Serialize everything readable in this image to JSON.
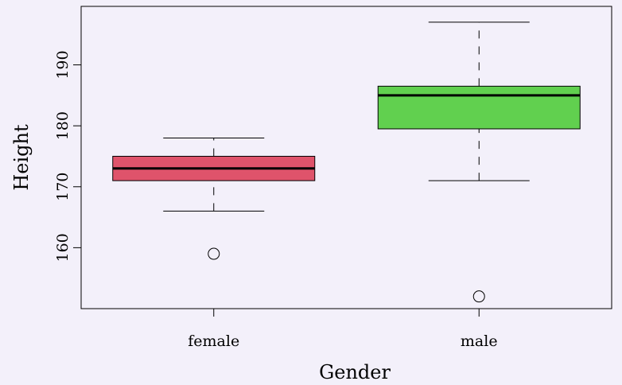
{
  "chart_data": {
    "type": "boxplot",
    "title": "",
    "xlabel": "Gender",
    "ylabel": "Height",
    "categories": [
      "female",
      "male"
    ],
    "ylim": [
      150.0,
      199.6
    ],
    "yticks": [
      160,
      170,
      180,
      190
    ],
    "grid": false,
    "boxes": [
      {
        "name": "female",
        "color": "#df536b",
        "whisker_low": 166,
        "q1": 171,
        "median": 173,
        "q3": 175,
        "whisker_high": 178,
        "outliers": [
          159
        ]
      },
      {
        "name": "male",
        "color": "#61d04f",
        "whisker_low": 171,
        "q1": 179.5,
        "median": 185,
        "q3": 186.5,
        "whisker_high": 197,
        "outliers": [
          152
        ]
      }
    ]
  }
}
